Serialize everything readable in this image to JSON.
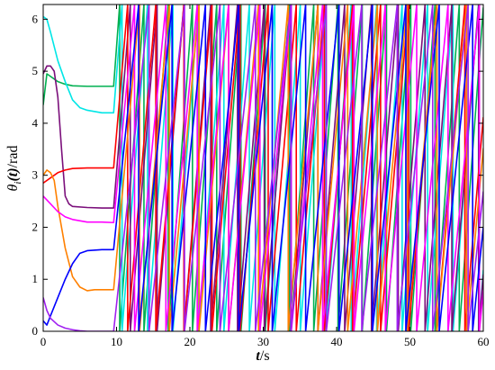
{
  "chart_data": {
    "type": "line",
    "title": "",
    "xlabel": "",
    "ylabel": "",
    "xlabel_parts": {
      "var": "t",
      "sep": "/",
      "unit": "s"
    },
    "ylabel_parts": {
      "var": "θ",
      "sub": "i",
      "arg": "(t)",
      "sep": "/",
      "unit": "rad"
    },
    "xlim": [
      0,
      60
    ],
    "ylim": [
      0,
      6.283
    ],
    "xticks": [
      0,
      10,
      20,
      30,
      40,
      50,
      60
    ],
    "yticks": [
      0,
      1,
      2,
      3,
      4,
      5,
      6
    ],
    "grid": false,
    "legend": "none",
    "wrap_period": 6.283,
    "drift_start": 9.6,
    "series": [
      {
        "color": "#00b050",
        "x": [
          0,
          0.5,
          1,
          2,
          3,
          4,
          6,
          8,
          9.6
        ],
        "y": [
          4.35,
          4.95,
          4.9,
          4.8,
          4.75,
          4.72,
          4.71,
          4.71,
          4.71
        ],
        "drift_slope": 1.9
      },
      {
        "color": "#00e6e6",
        "x": [
          0,
          0.5,
          1,
          2,
          3,
          4,
          5,
          6,
          8,
          9.6
        ],
        "y": [
          6.05,
          6.0,
          5.75,
          5.2,
          4.8,
          4.45,
          4.3,
          4.25,
          4.2,
          4.2
        ],
        "drift_slope": 1.81
      },
      {
        "color": "#7b0f7b",
        "x": [
          0,
          0.5,
          1,
          1.5,
          2,
          2.5,
          3,
          3.5,
          4,
          6,
          8,
          9.6
        ],
        "y": [
          4.95,
          5.1,
          5.1,
          5.0,
          4.5,
          3.5,
          2.6,
          2.45,
          2.4,
          2.38,
          2.37,
          2.37
        ],
        "drift_slope": 1.72
      },
      {
        "color": "#ff0000",
        "x": [
          0,
          1,
          2,
          3,
          4,
          6,
          8,
          9.6
        ],
        "y": [
          2.85,
          2.95,
          3.05,
          3.1,
          3.13,
          3.14,
          3.14,
          3.14
        ],
        "drift_slope": 1.64
      },
      {
        "color": "#ff8000",
        "x": [
          0,
          0.5,
          1,
          1.5,
          2,
          3,
          4,
          5,
          6,
          7,
          8,
          9.6
        ],
        "y": [
          3.0,
          3.1,
          3.05,
          2.9,
          2.4,
          1.6,
          1.05,
          0.85,
          0.78,
          0.8,
          0.8,
          0.8
        ],
        "drift_slope": 1.55
      },
      {
        "color": "#ff00ff",
        "x": [
          0,
          1,
          2,
          3,
          4,
          6,
          8,
          9.6
        ],
        "y": [
          2.6,
          2.45,
          2.3,
          2.2,
          2.15,
          2.1,
          2.1,
          2.09
        ],
        "drift_slope": 1.47
      },
      {
        "color": "#0000ff",
        "x": [
          0,
          0.5,
          1,
          2,
          3,
          4,
          5,
          6,
          8,
          9.6
        ],
        "y": [
          0.2,
          0.12,
          0.3,
          0.65,
          1.0,
          1.3,
          1.5,
          1.55,
          1.57,
          1.57
        ],
        "drift_slope": 1.38
      },
      {
        "color": "#a020f0",
        "x": [
          0,
          0.5,
          1,
          2,
          3,
          4,
          5,
          6,
          8,
          9.6
        ],
        "y": [
          0.65,
          0.4,
          0.25,
          0.12,
          0.06,
          0.03,
          0.01,
          0.0,
          0.0,
          0.0
        ],
        "drift_slope": 1.3
      }
    ]
  }
}
